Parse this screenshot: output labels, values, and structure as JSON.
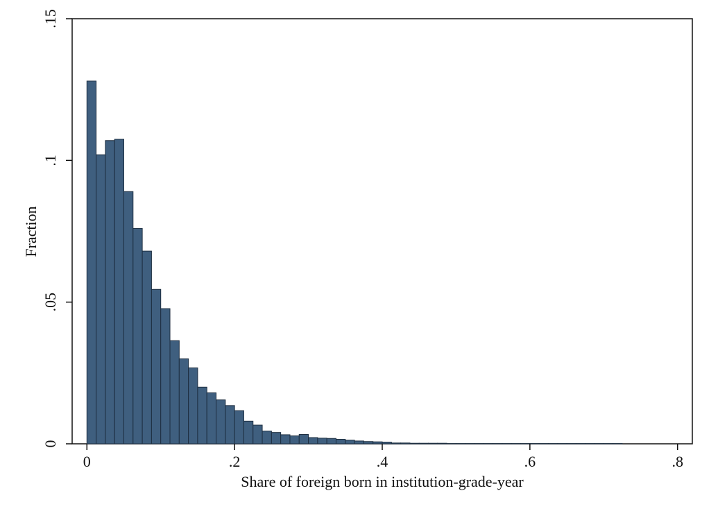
{
  "chart_data": {
    "type": "bar",
    "title": "",
    "xlabel": "Share of foreign born in institution-grade-year",
    "ylabel": "Fraction",
    "xlim": [
      -0.02,
      0.82
    ],
    "ylim": [
      0,
      0.15
    ],
    "x_ticks": [
      {
        "value": 0,
        "label": "0"
      },
      {
        "value": 0.2,
        "label": ".2"
      },
      {
        "value": 0.4,
        "label": ".4"
      },
      {
        "value": 0.6,
        "label": ".6"
      },
      {
        "value": 0.8,
        "label": ".8"
      }
    ],
    "y_ticks": [
      {
        "value": 0,
        "label": "0"
      },
      {
        "value": 0.05,
        "label": ".05"
      },
      {
        "value": 0.1,
        "label": ".1"
      },
      {
        "value": 0.15,
        "label": ".15"
      }
    ],
    "grid": false,
    "bin_width": 0.0125,
    "bins_start": 0,
    "values": [
      0.128,
      0.102,
      0.107,
      0.1075,
      0.089,
      0.076,
      0.068,
      0.0545,
      0.0477,
      0.0364,
      0.03,
      0.0268,
      0.02,
      0.018,
      0.0155,
      0.0135,
      0.0117,
      0.008,
      0.0066,
      0.0045,
      0.004,
      0.0032,
      0.0028,
      0.0033,
      0.0022,
      0.002,
      0.0019,
      0.0016,
      0.0013,
      0.001,
      0.0008,
      0.0007,
      0.0006,
      0.0003,
      0.0003,
      0.0002,
      0.0002,
      0.0002,
      0.0002,
      0.0001,
      0.0001,
      0.0001,
      0.0001,
      0.0001,
      0.0001,
      0.0001,
      0.0001,
      0.0001,
      0.0001,
      0.0001,
      0.0001,
      0.0001,
      0.0001,
      0.0001,
      0.0001,
      0.0001,
      0.0001,
      0.0001
    ]
  },
  "colors": {
    "bar_fill": "#3f5f7f",
    "bar_edge": "#1d2e40"
  }
}
